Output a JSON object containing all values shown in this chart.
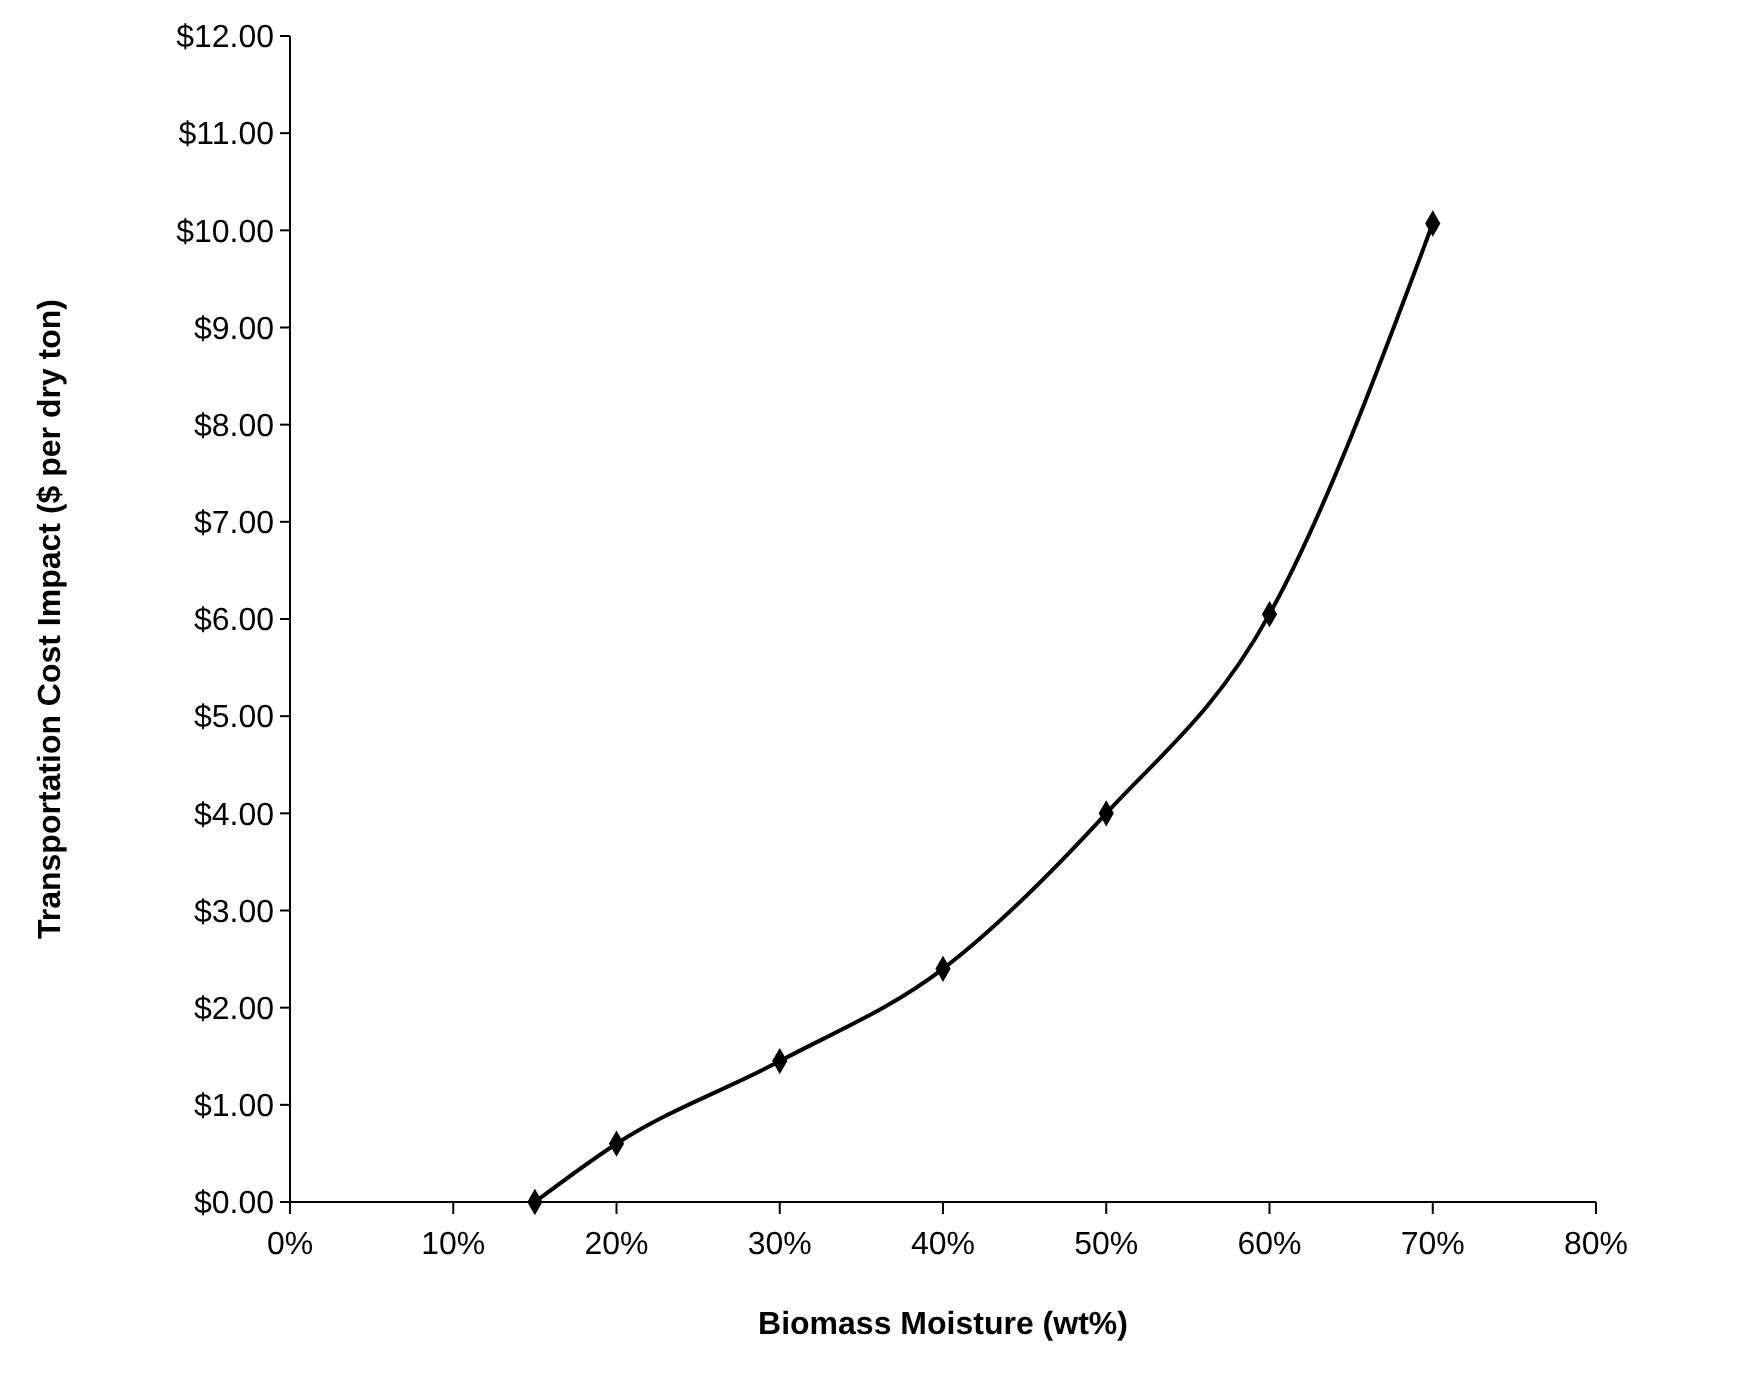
{
  "chart_data": {
    "type": "line",
    "xlabel": "Biomass Moisture (wt%)",
    "ylabel": "Transportation Cost Impact ($ per dry ton)",
    "x": [
      15,
      20,
      30,
      40,
      50,
      60,
      70
    ],
    "series": [
      {
        "color": "#000000",
        "values": [
          0,
          0.6,
          1.45,
          2.4,
          4.0,
          6.05,
          10.07
        ]
      }
    ],
    "xlim": [
      0,
      80
    ],
    "xticks": [
      {
        "value": 0,
        "label": "0%"
      },
      {
        "value": 10,
        "label": "10%"
      },
      {
        "value": 20,
        "label": "20%"
      },
      {
        "value": 30,
        "label": "30%"
      },
      {
        "value": 40,
        "label": "40%"
      },
      {
        "value": 50,
        "label": "50%"
      },
      {
        "value": 60,
        "label": "60%"
      },
      {
        "value": 70,
        "label": "70%"
      },
      {
        "value": 80,
        "label": "80%"
      }
    ],
    "ylim": [
      0,
      12
    ],
    "yticks": [
      {
        "value": 0,
        "label": "$0.00"
      },
      {
        "value": 1,
        "label": "$1.00"
      },
      {
        "value": 2,
        "label": "$2.00"
      },
      {
        "value": 3,
        "label": "$3.00"
      },
      {
        "value": 4,
        "label": "$4.00"
      },
      {
        "value": 5,
        "label": "$5.00"
      },
      {
        "value": 6,
        "label": "$6.00"
      },
      {
        "value": 7,
        "label": "$7.00"
      },
      {
        "value": 8,
        "label": "$8.00"
      },
      {
        "value": 9,
        "label": "$9.00"
      },
      {
        "value": 10,
        "label": "$10.00"
      },
      {
        "value": 11,
        "label": "$11.00"
      },
      {
        "value": 12,
        "label": "$12.00"
      }
    ],
    "grid": false,
    "marker": "diamond",
    "line_style": "solid"
  }
}
